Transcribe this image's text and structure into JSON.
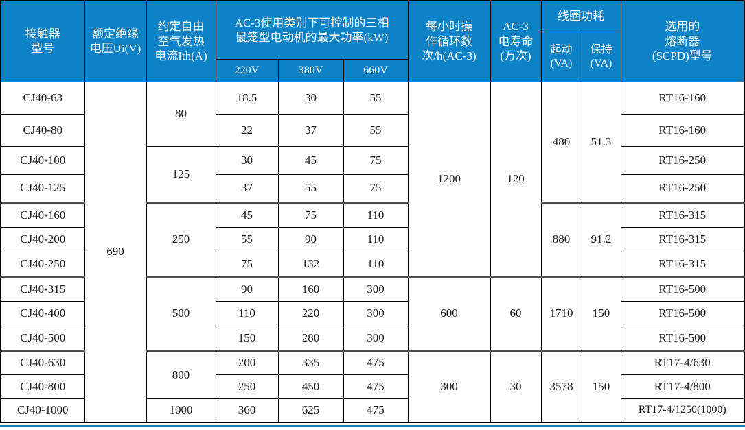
{
  "page": {
    "background": "#ffffff",
    "header_bg": "#0d82c6",
    "header_text_color": "#ffffff",
    "body_text_color": "#1f1f1f",
    "grid_color": "#000000",
    "group_rule_color": "#4d4d4d",
    "bottom_bar_color": "#0d82c6"
  },
  "table": {
    "header": {
      "model": "接触器\n型号",
      "ui": "额定绝缘\n电压Ui(V)",
      "ith": "约定自由\n空气发热\n电流Ith(A)",
      "kw_group": "AC-3使用类别下可控制的三相\n鼠笼型电动机的最大功率(kW)",
      "kw_sub": [
        "220V",
        "380V",
        "660V"
      ],
      "cycles": "每小时操\n作循环数\n次/h(AC-3)",
      "life": "AC-3\n电寿命\n(万次)",
      "coil_group": "线圈功耗",
      "coil_start": "起动\n(VA)",
      "coil_hold": "保持\n(VA)",
      "fuse": "选用的\n熔断器\n(SCPD)型号"
    },
    "rows": [
      {
        "h": "tall",
        "cells": [
          {
            "v": "CJ40-63"
          },
          {
            "v": "690",
            "rs": 13
          },
          {
            "v": "80",
            "rs": 2
          },
          {
            "v": "18.5"
          },
          {
            "v": "30"
          },
          {
            "v": "55"
          },
          {
            "v": "1200",
            "rs": 7,
            "ge": true
          },
          {
            "v": "120",
            "rs": 7,
            "ge": true
          },
          {
            "v": "480",
            "rs": 4,
            "ge": true
          },
          {
            "v": "51.3",
            "rs": 4,
            "ge": true
          },
          {
            "v": "RT16-160"
          }
        ]
      },
      {
        "h": "tall",
        "cells": [
          {
            "v": "CJ40-80"
          },
          {
            "v": "22"
          },
          {
            "v": "37"
          },
          {
            "v": "55"
          },
          {
            "v": "RT16-160"
          }
        ]
      },
      {
        "h": "mid",
        "cells": [
          {
            "v": "CJ40-100"
          },
          {
            "v": "125",
            "rs": 2,
            "ge": true
          },
          {
            "v": "30"
          },
          {
            "v": "45"
          },
          {
            "v": "75"
          },
          {
            "v": "RT16-250"
          }
        ]
      },
      {
        "h": "mid",
        "ge": true,
        "cells": [
          {
            "v": "CJ40-125"
          },
          {
            "v": "37"
          },
          {
            "v": "55"
          },
          {
            "v": "75"
          },
          {
            "v": "RT16-250"
          }
        ]
      },
      {
        "h": "std",
        "cells": [
          {
            "v": "CJ40-160"
          },
          {
            "v": "250",
            "rs": 3,
            "ge": true
          },
          {
            "v": "45"
          },
          {
            "v": "75"
          },
          {
            "v": "110"
          },
          {
            "v": "880",
            "rs": 3,
            "ge": true
          },
          {
            "v": "91.2",
            "rs": 3,
            "ge": true
          },
          {
            "v": "RT16-315"
          }
        ]
      },
      {
        "h": "std",
        "cells": [
          {
            "v": "CJ40-200"
          },
          {
            "v": "55"
          },
          {
            "v": "90"
          },
          {
            "v": "110"
          },
          {
            "v": "RT16-315"
          }
        ]
      },
      {
        "h": "std",
        "ge": true,
        "cells": [
          {
            "v": "CJ40-250"
          },
          {
            "v": "75"
          },
          {
            "v": "132"
          },
          {
            "v": "110"
          },
          {
            "v": "RT16-315"
          }
        ]
      },
      {
        "h": "std",
        "cells": [
          {
            "v": "CJ40-315"
          },
          {
            "v": "500",
            "rs": 3,
            "ge": true
          },
          {
            "v": "90"
          },
          {
            "v": "160"
          },
          {
            "v": "300"
          },
          {
            "v": "600",
            "rs": 3,
            "ge": true
          },
          {
            "v": "60",
            "rs": 3,
            "ge": true
          },
          {
            "v": "1710",
            "rs": 3,
            "ge": true
          },
          {
            "v": "150",
            "rs": 3,
            "ge": true
          },
          {
            "v": "RT16-500"
          }
        ]
      },
      {
        "h": "std",
        "cells": [
          {
            "v": "CJ40-400"
          },
          {
            "v": "110"
          },
          {
            "v": "220"
          },
          {
            "v": "300"
          },
          {
            "v": "RT16-500"
          }
        ]
      },
      {
        "h": "std",
        "ge": true,
        "cells": [
          {
            "v": "CJ40-500"
          },
          {
            "v": "150"
          },
          {
            "v": "280"
          },
          {
            "v": "300"
          },
          {
            "v": "RT16-500"
          }
        ]
      },
      {
        "h": "sm",
        "cells": [
          {
            "v": "CJ40-630"
          },
          {
            "v": "800",
            "rs": 2
          },
          {
            "v": "200"
          },
          {
            "v": "335"
          },
          {
            "v": "475"
          },
          {
            "v": "300",
            "rs": 3
          },
          {
            "v": "30",
            "rs": 3
          },
          {
            "v": "3578",
            "rs": 3
          },
          {
            "v": "150",
            "rs": 3
          },
          {
            "v": "RT17-4/630"
          }
        ]
      },
      {
        "h": "sm",
        "cells": [
          {
            "v": "CJ40-800"
          },
          {
            "v": "250"
          },
          {
            "v": "450"
          },
          {
            "v": "475"
          },
          {
            "v": "RT17-4/800"
          }
        ]
      },
      {
        "h": "sm",
        "cells": [
          {
            "v": "CJ40-1000"
          },
          {
            "v": "1000"
          },
          {
            "v": "360"
          },
          {
            "v": "625"
          },
          {
            "v": "475"
          },
          {
            "v": "RT17-4/1250(1000)",
            "wide": true
          }
        ]
      }
    ]
  }
}
